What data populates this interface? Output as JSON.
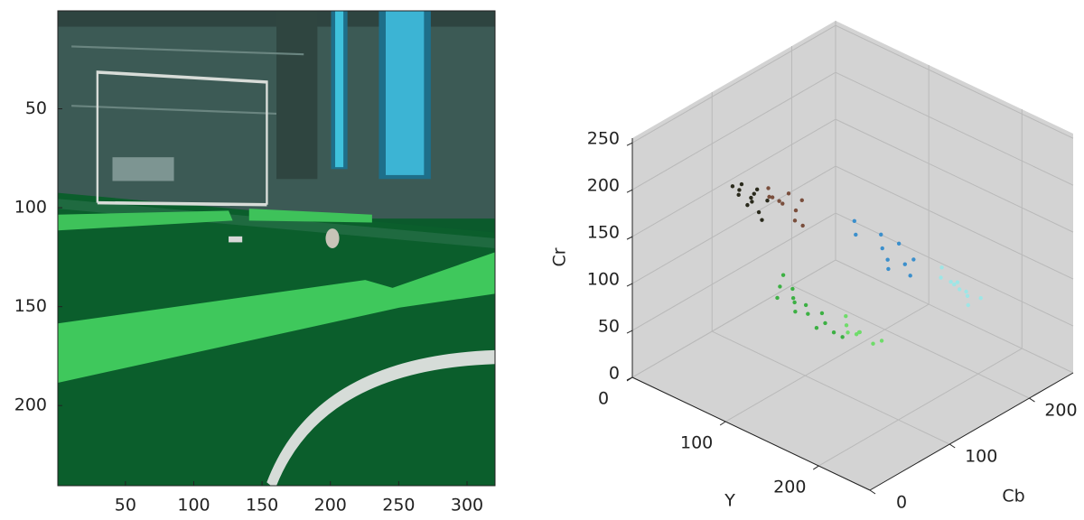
{
  "chart_data": [
    {
      "type": "image",
      "xlim": [
        0.5,
        320.5
      ],
      "ylim": [
        0.5,
        240.5
      ],
      "xticks": [
        50,
        100,
        150,
        200,
        250,
        300
      ],
      "yticks": [
        50,
        100,
        150,
        200
      ]
    },
    {
      "type": "scatter3d",
      "xlabel": "Y",
      "ylabel": "Cb",
      "zlabel": "Cr",
      "xlim": [
        0,
        255
      ],
      "ylim": [
        0,
        255
      ],
      "zlim": [
        0,
        255
      ],
      "xticks": [
        0,
        100,
        200
      ],
      "yticks": [
        0,
        100,
        200
      ],
      "zticks": [
        0,
        50,
        100,
        150,
        200,
        250
      ],
      "grid": true,
      "series": [
        {
          "color": "#2a2a1c",
          "x": [
            20,
            25,
            30,
            35,
            28,
            40,
            22,
            33,
            45,
            38,
            30,
            26
          ],
          "y": [
            110,
            105,
            115,
            108,
            120,
            112,
            100,
            118,
            110,
            125,
            102,
            114
          ],
          "z": [
            150,
            160,
            145,
            155,
            150,
            140,
            165,
            158,
            135,
            145,
            170,
            140
          ]
        },
        {
          "color": "#7a4e3c",
          "x": [
            40,
            50,
            55,
            60,
            48,
            65,
            52,
            70,
            58,
            45
          ],
          "y": [
            125,
            130,
            120,
            135,
            140,
            128,
            115,
            132,
            145,
            118
          ],
          "z": [
            150,
            145,
            155,
            140,
            150,
            135,
            160,
            130,
            145,
            165
          ]
        },
        {
          "color": "#3cb043",
          "x": [
            90,
            100,
            110,
            120,
            130,
            105,
            115,
            125,
            95,
            135,
            140,
            118,
            100,
            85
          ],
          "y": [
            80,
            85,
            75,
            80,
            90,
            95,
            70,
            85,
            90,
            95,
            100,
            100,
            65,
            90
          ],
          "z": [
            100,
            90,
            95,
            85,
            75,
            80,
            90,
            70,
            95,
            65,
            60,
            75,
            100,
            105
          ]
        },
        {
          "color": "#6fdc6a",
          "x": [
            140,
            150,
            145,
            155,
            160,
            135,
            150,
            165
          ],
          "y": [
            105,
            110,
            115,
            100,
            115,
            110,
            95,
            120
          ],
          "z": [
            70,
            65,
            60,
            70,
            55,
            75,
            72,
            58
          ]
        },
        {
          "color": "#3b8fcc",
          "x": [
            120,
            140,
            150,
            160,
            130,
            170,
            145,
            155,
            110,
            165
          ],
          "y": [
            140,
            150,
            145,
            155,
            160,
            150,
            165,
            140,
            150,
            160
          ],
          "z": [
            140,
            130,
            125,
            120,
            135,
            115,
            130,
            120,
            145,
            125
          ]
        },
        {
          "color": "#9ee6e6",
          "x": [
            190,
            200,
            210,
            205,
            195,
            215,
            185,
            220,
            200,
            210
          ],
          "y": [
            165,
            170,
            175,
            160,
            180,
            170,
            172,
            180,
            185,
            165
          ],
          "z": [
            115,
            110,
            100,
            120,
            105,
            95,
            120,
            100,
            95,
            112
          ]
        }
      ]
    }
  ]
}
